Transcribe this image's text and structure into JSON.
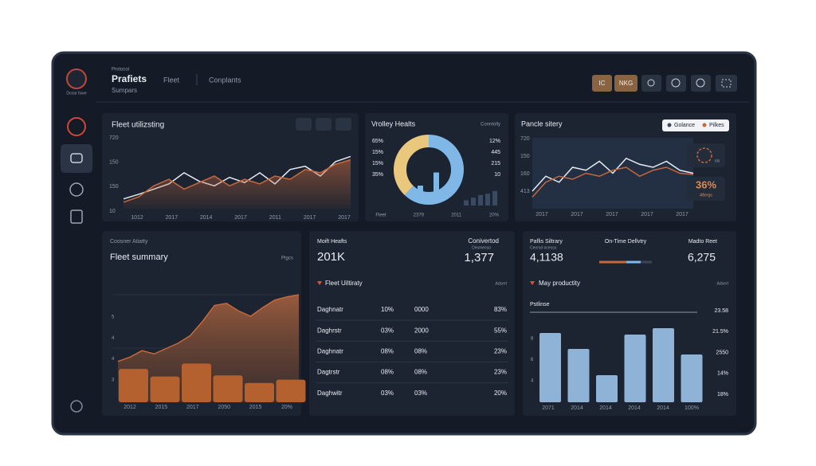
{
  "header": {
    "logo_text": "Dcoar fowe",
    "overline": "Protocol",
    "title": "Prafiets",
    "subtitle": "Sumpars",
    "nav": [
      "Fleet",
      "Conplants"
    ],
    "buttons": [
      "IC",
      "NKG"
    ]
  },
  "fleet_utilization": {
    "title": "Fleet utilizsting",
    "y_labels": [
      "720",
      "150",
      "150",
      "10"
    ],
    "x_labels": [
      "1012",
      "2017",
      "2014",
      "2017",
      "2011",
      "2017",
      "2017"
    ],
    "ylim": [
      0,
      100
    ],
    "series": [
      {
        "color": "#e6ecf4",
        "values": [
          15,
          22,
          30,
          38,
          55,
          42,
          35,
          48,
          40,
          55,
          38,
          60,
          65,
          50,
          72,
          80
        ]
      },
      {
        "color": "#c7683c",
        "values": [
          10,
          18,
          35,
          45,
          30,
          40,
          50,
          35,
          45,
          38,
          50,
          45,
          60,
          55,
          68,
          75
        ]
      }
    ]
  },
  "vehicle_health": {
    "title": "Vrolley Healts",
    "corner": "Conntolly",
    "left_labels": [
      "65%",
      "15%",
      "15%",
      "35%"
    ],
    "right_labels": [
      "12%",
      "445",
      "215",
      "10"
    ],
    "bottom_labels": [
      "Fleet",
      "2379",
      "2011",
      "20%"
    ],
    "donut": [
      {
        "color": "#7fb8e6",
        "value": 62
      },
      {
        "color": "#e9c87d",
        "value": 38
      }
    ],
    "inner_bars": [
      40,
      20,
      70
    ],
    "side_bars": [
      20,
      30,
      40,
      45,
      55
    ],
    "ylim": [
      0,
      100
    ]
  },
  "vehicle_history": {
    "title": "Pancle sitery",
    "legend": [
      "Golance",
      "Pilkes"
    ],
    "y_labels": [
      "720",
      "150",
      "160",
      "413"
    ],
    "x_labels": [
      "2017",
      "2017",
      "2017",
      "2017",
      "2017"
    ],
    "ylim": [
      0,
      100
    ],
    "series": [
      {
        "color": "#e6ecf4",
        "values": [
          20,
          45,
          35,
          60,
          55,
          70,
          50,
          75,
          65,
          60,
          70,
          55,
          50
        ]
      },
      {
        "color": "#c7683c",
        "values": [
          10,
          35,
          45,
          40,
          50,
          45,
          55,
          60,
          45,
          55,
          60,
          50,
          48
        ]
      }
    ],
    "badge_value": "36%",
    "badge_label": "Aftergs",
    "icon_label": "ols"
  },
  "fleet_summary": {
    "overline": "Coosner Atiatty",
    "title": "Fleet summary",
    "corner": "Ptgcs",
    "y_labels": [
      "5",
      "4",
      "4",
      "3"
    ],
    "x_labels": [
      "2012",
      "2015",
      "2017",
      "2050",
      "2015",
      "20%"
    ],
    "ylim": [
      0,
      100
    ],
    "area": [
      38,
      42,
      48,
      45,
      50,
      55,
      62,
      75,
      90,
      92,
      85,
      80,
      88,
      95,
      98,
      100
    ],
    "bars": [
      31,
      24,
      36,
      25,
      18,
      21
    ]
  },
  "fleet_stats": {
    "kpis": [
      {
        "label": "Moift Heafts",
        "value": "201K"
      },
      {
        "label": "Conivertod",
        "value": "1,377",
        "sub": "Desmenso"
      }
    ],
    "section": "Fleet Uiltiraty",
    "corner": "Adsert",
    "rows": [
      [
        "Daghnatr",
        "10%",
        "0000",
        "83%"
      ],
      [
        "Daghrstr",
        "03%",
        "2000",
        "55%"
      ],
      [
        "Daghnatr",
        "08%",
        "08%",
        "23%"
      ],
      [
        "Dagtrstr",
        "08%",
        "08%",
        "23%"
      ],
      [
        "Daghwitr",
        "03%",
        "03%",
        "20%"
      ]
    ]
  },
  "productivity": {
    "kpis": [
      {
        "label": "Paflis Siltrary",
        "value": "4,1138",
        "sub": "Ceorsd ocesso"
      },
      {
        "label": "On-Time Dellvtry"
      },
      {
        "label": "Madto Reet",
        "value": "6,275"
      }
    ],
    "section": "May productity",
    "corner": "Adsert",
    "legend": "Pstlinse",
    "left_labels": [
      "8",
      "6",
      "4"
    ],
    "right_labels": [
      "23.58",
      "21.5%",
      "2550",
      "14%",
      "18%"
    ],
    "x_labels": [
      "2071",
      "2014",
      "2014",
      "2014",
      "2014",
      "100%"
    ],
    "bars": [
      87,
      67,
      34,
      85,
      93,
      60
    ],
    "ylim": [
      0,
      100
    ],
    "bar_color": "#8fb3d6"
  }
}
